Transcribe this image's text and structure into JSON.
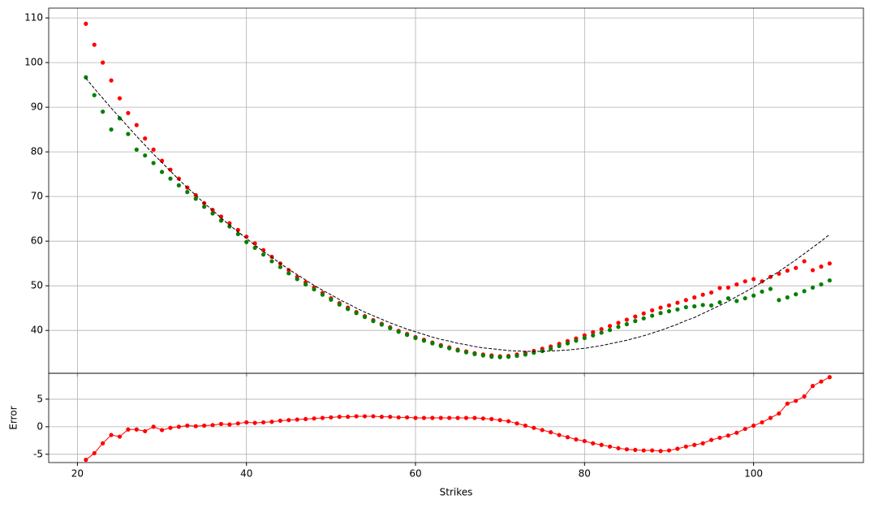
{
  "chart_data": [
    {
      "type": "scatter",
      "x": [
        21,
        22,
        23,
        24,
        25,
        26,
        27,
        28,
        29,
        30,
        31,
        32,
        33,
        34,
        35,
        36,
        37,
        38,
        39,
        40,
        41,
        42,
        43,
        44,
        45,
        46,
        47,
        48,
        49,
        50,
        51,
        52,
        53,
        54,
        55,
        56,
        57,
        58,
        59,
        60,
        61,
        62,
        63,
        64,
        65,
        66,
        67,
        68,
        69,
        70,
        71,
        72,
        73,
        74,
        75,
        76,
        77,
        78,
        79,
        80,
        81,
        82,
        83,
        84,
        85,
        86,
        87,
        88,
        89,
        90,
        91,
        92,
        93,
        94,
        95,
        96,
        97,
        98,
        99,
        100,
        101,
        102,
        103,
        104,
        105,
        106,
        107,
        108,
        109
      ],
      "series": [
        {
          "color": "#ff0000",
          "style": "dots",
          "values": [
            108.7,
            104,
            100,
            96,
            92,
            88.7,
            86,
            83,
            80.5,
            78,
            76,
            74,
            72,
            70.3,
            68.5,
            67,
            65.5,
            64,
            62.5,
            61,
            59.5,
            58,
            56.5,
            55,
            53.5,
            52,
            50.8,
            49.6,
            48.4,
            47.2,
            46.1,
            45.1,
            44.1,
            43.2,
            42.3,
            41.5,
            40.7,
            39.9,
            39.2,
            38.5,
            37.9,
            37.3,
            36.7,
            36.2,
            35.7,
            35.3,
            34.9,
            34.6,
            34.4,
            34.2,
            34.3,
            34.6,
            35,
            35.4,
            35.9,
            36.4,
            37,
            37.6,
            38.2,
            38.9,
            39.6,
            40.3,
            41,
            41.7,
            42.4,
            43.1,
            43.8,
            44.5,
            45.1,
            45.6,
            46.2,
            46.8,
            47.4,
            48,
            48.5,
            49.5,
            49.6,
            50.3,
            51,
            51.5,
            51,
            52,
            52.7,
            53.4,
            54,
            55.5,
            53.5,
            54.3,
            55
          ]
        },
        {
          "color": "#008000",
          "style": "dots",
          "values": [
            96.7,
            92.7,
            89,
            85,
            87.5,
            84,
            80.5,
            79.2,
            77.5,
            75.5,
            74,
            72.5,
            71,
            69.5,
            67.7,
            66.2,
            64.6,
            63.3,
            61.6,
            59.8,
            58.5,
            57,
            55.5,
            54.2,
            52.8,
            51.5,
            50.3,
            49.2,
            48,
            46.9,
            45.8,
            44.8,
            43.9,
            43,
            42.1,
            41.3,
            40.5,
            39.7,
            39,
            38.3,
            37.7,
            37.1,
            36.5,
            36,
            35.5,
            35.1,
            34.7,
            34.4,
            34.1,
            34,
            34.1,
            34.3,
            34.6,
            35,
            35.4,
            35.9,
            36.5,
            37.1,
            37.7,
            38.3,
            38.9,
            39.5,
            40.1,
            40.8,
            41.4,
            42.1,
            42.7,
            43.3,
            43.9,
            44.3,
            44.7,
            45.2,
            45.4,
            45.7,
            45.6,
            46.3,
            47.2,
            46.6,
            47.2,
            47.8,
            48.7,
            49.3,
            46.8,
            47.4,
            48.1,
            48.8,
            49.6,
            50.3,
            51.2
          ]
        },
        {
          "color": "#000000",
          "style": "dashed",
          "values": [
            96.5,
            94.2,
            92,
            89.8,
            87.7,
            85.6,
            83.5,
            81.5,
            79.5,
            77.6,
            75.7,
            73.8,
            72,
            70.3,
            68.5,
            66.9,
            65.2,
            63.6,
            62.1,
            60.6,
            59.1,
            57.7,
            56.4,
            55,
            53.7,
            52.5,
            51.3,
            50.1,
            49,
            48,
            46.9,
            46,
            45,
            44.1,
            43.3,
            42.5,
            41.7,
            41,
            40.3,
            39.7,
            39.1,
            38.5,
            38,
            37.6,
            37.1,
            36.8,
            36.4,
            36.1,
            35.9,
            35.7,
            35.5,
            35.4,
            35.3,
            35.3,
            35.3,
            35.4,
            35.5,
            35.6,
            35.8,
            36,
            36.3,
            36.6,
            37,
            37.4,
            37.8,
            38.3,
            38.8,
            39.4,
            40,
            40.7,
            41.4,
            42.2,
            42.9,
            43.8,
            44.7,
            45.6,
            46.5,
            47.6,
            48.6,
            49.7,
            50.8,
            52,
            53.2,
            54.5,
            55.8,
            57.2,
            58.6,
            60,
            61.5
          ]
        }
      ],
      "xlim": [
        16.6,
        113
      ],
      "xticks": [
        20,
        40,
        60,
        80,
        100
      ],
      "xtick_labels": false,
      "ylim": [
        30.4,
        112.2
      ],
      "yticks": [
        40,
        50,
        60,
        70,
        80,
        90,
        100,
        110
      ],
      "grid": true
    },
    {
      "type": "line",
      "ylabel": "Error",
      "xlabel": "Strikes",
      "color": "#ff0000",
      "markers": true,
      "x": [
        21,
        22,
        23,
        24,
        25,
        26,
        27,
        28,
        29,
        30,
        31,
        32,
        33,
        34,
        35,
        36,
        37,
        38,
        39,
        40,
        41,
        42,
        43,
        44,
        45,
        46,
        47,
        48,
        49,
        50,
        51,
        52,
        53,
        54,
        55,
        56,
        57,
        58,
        59,
        60,
        61,
        62,
        63,
        64,
        65,
        66,
        67,
        68,
        69,
        70,
        71,
        72,
        73,
        74,
        75,
        76,
        77,
        78,
        79,
        80,
        81,
        82,
        83,
        84,
        85,
        86,
        87,
        88,
        89,
        90,
        91,
        92,
        93,
        94,
        95,
        96,
        97,
        98,
        99,
        100,
        101,
        102,
        103,
        104,
        105,
        106,
        107,
        108,
        109
      ],
      "values": [
        -6,
        -4.8,
        -3,
        -1.5,
        -1.8,
        -0.5,
        -0.5,
        -0.8,
        0,
        -0.6,
        -0.2,
        0,
        0.2,
        0.1,
        0.2,
        0.3,
        0.5,
        0.4,
        0.6,
        0.8,
        0.7,
        0.8,
        0.9,
        1.1,
        1.2,
        1.3,
        1.4,
        1.5,
        1.6,
        1.7,
        1.8,
        1.8,
        1.9,
        1.9,
        1.9,
        1.8,
        1.8,
        1.7,
        1.7,
        1.6,
        1.6,
        1.6,
        1.6,
        1.6,
        1.6,
        1.6,
        1.6,
        1.5,
        1.4,
        1.2,
        1,
        0.6,
        0.2,
        -0.2,
        -0.6,
        -1,
        -1.5,
        -1.9,
        -2.3,
        -2.6,
        -3,
        -3.3,
        -3.6,
        -3.9,
        -4.1,
        -4.2,
        -4.3,
        -4.3,
        -4.4,
        -4.3,
        -4,
        -3.6,
        -3.3,
        -3,
        -2.4,
        -2,
        -1.6,
        -1.1,
        -0.4,
        0.2,
        0.8,
        1.6,
        2.4,
        4.2,
        4.7,
        5.5,
        7.4,
        8.2,
        9
      ],
      "xlim": [
        16.6,
        113
      ],
      "xticks": [
        20,
        40,
        60,
        80,
        100
      ],
      "xtick_labels": true,
      "ylim": [
        -6.5,
        9.7
      ],
      "yticks": [
        -5,
        0,
        5
      ],
      "grid": true
    }
  ]
}
